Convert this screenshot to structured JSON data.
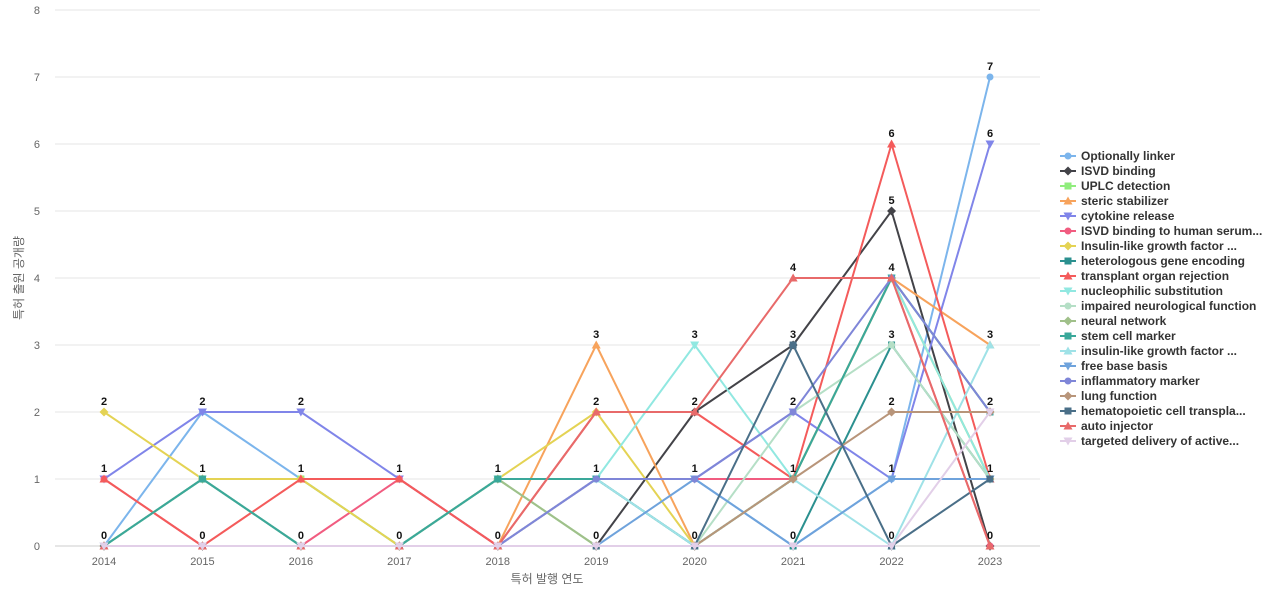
{
  "chart_data": {
    "type": "line",
    "title": "",
    "xlabel": "특허 발행 연도",
    "ylabel": "특허 출원 공개량",
    "ylim": [
      0,
      8
    ],
    "yticks": [
      0,
      1,
      2,
      3,
      4,
      5,
      6,
      7,
      8
    ],
    "categories": [
      "2014",
      "2015",
      "2016",
      "2017",
      "2018",
      "2019",
      "2020",
      "2021",
      "2022",
      "2023"
    ],
    "grid": true,
    "legend_position": "right",
    "series": [
      {
        "name": "Optionally linker",
        "color": "#7cb5ec",
        "marker": "circle",
        "values": [
          0,
          2,
          1,
          0,
          0,
          1,
          1,
          0,
          1,
          7
        ]
      },
      {
        "name": "ISVD binding",
        "color": "#434348",
        "marker": "diamond",
        "values": [
          0,
          0,
          0,
          0,
          0,
          0,
          2,
          3,
          5,
          0
        ]
      },
      {
        "name": "UPLC detection",
        "color": "#90ed7d",
        "marker": "square",
        "values": [
          0,
          1,
          1,
          0,
          1,
          0,
          0,
          1,
          4,
          1
        ]
      },
      {
        "name": "steric stabilizer",
        "color": "#f7a35c",
        "marker": "triangle",
        "values": [
          0,
          0,
          0,
          0,
          0,
          3,
          0,
          1,
          4,
          3
        ]
      },
      {
        "name": "cytokine release",
        "color": "#8085e9",
        "marker": "triangle-down",
        "values": [
          1,
          2,
          2,
          1,
          0,
          1,
          1,
          2,
          1,
          6
        ]
      },
      {
        "name": "ISVD binding to human serum...",
        "color": "#f15c80",
        "marker": "circle",
        "values": [
          1,
          0,
          0,
          1,
          0,
          1,
          1,
          1,
          4,
          0
        ]
      },
      {
        "name": "Insulin-like growth factor ...",
        "color": "#e4d354",
        "marker": "diamond",
        "values": [
          2,
          1,
          1,
          0,
          1,
          2,
          0,
          1,
          4,
          1
        ]
      },
      {
        "name": "heterologous gene encoding",
        "color": "#2b908f",
        "marker": "square",
        "values": [
          0,
          1,
          0,
          0,
          1,
          1,
          0,
          0,
          3,
          1
        ]
      },
      {
        "name": "transplant organ rejection",
        "color": "#f45b5b",
        "marker": "triangle",
        "values": [
          1,
          0,
          1,
          1,
          0,
          2,
          2,
          1,
          6,
          1
        ]
      },
      {
        "name": "nucleophilic substitution",
        "color": "#91e8e1",
        "marker": "triangle-down",
        "values": [
          0,
          1,
          0,
          0,
          1,
          1,
          3,
          1,
          4,
          1
        ]
      },
      {
        "name": "impaired neurological function",
        "color": "#b5dfc6",
        "marker": "circle",
        "values": [
          0,
          1,
          0,
          0,
          1,
          0,
          0,
          2,
          3,
          1
        ]
      },
      {
        "name": "neural network",
        "color": "#a0c08a",
        "marker": "diamond",
        "values": [
          0,
          1,
          0,
          0,
          1,
          0,
          0,
          1,
          4,
          2
        ]
      },
      {
        "name": "stem cell marker",
        "color": "#3aa89a",
        "marker": "square",
        "values": [
          0,
          1,
          0,
          0,
          1,
          1,
          0,
          1,
          4,
          2
        ]
      },
      {
        "name": "insulin-like growth factor ...",
        "color": "#9fe2e7",
        "marker": "triangle",
        "values": [
          0,
          0,
          0,
          0,
          0,
          1,
          0,
          1,
          0,
          3
        ]
      },
      {
        "name": "free base basis",
        "color": "#6fa3dc",
        "marker": "triangle-down",
        "values": [
          0,
          0,
          0,
          0,
          0,
          0,
          1,
          0,
          1,
          1
        ]
      },
      {
        "name": "inflammatory marker",
        "color": "#7f86d8",
        "marker": "circle",
        "values": [
          0,
          0,
          0,
          0,
          0,
          1,
          1,
          2,
          4,
          2
        ]
      },
      {
        "name": "lung function",
        "color": "#b8957a",
        "marker": "diamond",
        "values": [
          0,
          0,
          0,
          0,
          0,
          0,
          0,
          1,
          2,
          2
        ]
      },
      {
        "name": "hematopoietic cell transpla...",
        "color": "#4a6f88",
        "marker": "square",
        "values": [
          0,
          0,
          0,
          0,
          0,
          0,
          0,
          3,
          0,
          1
        ]
      },
      {
        "name": "auto injector",
        "color": "#e86a6a",
        "marker": "triangle",
        "values": [
          0,
          0,
          0,
          0,
          0,
          2,
          2,
          4,
          4,
          0
        ]
      },
      {
        "name": "targeted delivery of active...",
        "color": "#e2cfe8",
        "marker": "triangle-down",
        "values": [
          0,
          0,
          0,
          0,
          0,
          0,
          0,
          0,
          0,
          2
        ]
      }
    ],
    "data_labels": [
      {
        "x": "2014",
        "y": 2,
        "text": "2"
      },
      {
        "x": "2014",
        "y": 1,
        "text": "1"
      },
      {
        "x": "2014",
        "y": 0,
        "text": "0"
      },
      {
        "x": "2015",
        "y": 2,
        "text": "2"
      },
      {
        "x": "2015",
        "y": 1,
        "text": "1"
      },
      {
        "x": "2015",
        "y": 0,
        "text": "0"
      },
      {
        "x": "2016",
        "y": 2,
        "text": "2"
      },
      {
        "x": "2016",
        "y": 1,
        "text": "1"
      },
      {
        "x": "2016",
        "y": 0,
        "text": "0"
      },
      {
        "x": "2017",
        "y": 1,
        "text": "1"
      },
      {
        "x": "2017",
        "y": 0,
        "text": "0"
      },
      {
        "x": "2018",
        "y": 1,
        "text": "1"
      },
      {
        "x": "2018",
        "y": 0,
        "text": "0"
      },
      {
        "x": "2019",
        "y": 3,
        "text": "3"
      },
      {
        "x": "2019",
        "y": 2,
        "text": "2"
      },
      {
        "x": "2019",
        "y": 1,
        "text": "1"
      },
      {
        "x": "2019",
        "y": 0,
        "text": "0"
      },
      {
        "x": "2020",
        "y": 3,
        "text": "3"
      },
      {
        "x": "2020",
        "y": 2,
        "text": "2"
      },
      {
        "x": "2020",
        "y": 1,
        "text": "1"
      },
      {
        "x": "2020",
        "y": 0,
        "text": "0"
      },
      {
        "x": "2021",
        "y": 4,
        "text": "4"
      },
      {
        "x": "2021",
        "y": 3,
        "text": "3"
      },
      {
        "x": "2021",
        "y": 2,
        "text": "2"
      },
      {
        "x": "2021",
        "y": 1,
        "text": "1"
      },
      {
        "x": "2021",
        "y": 0,
        "text": "0"
      },
      {
        "x": "2022",
        "y": 6,
        "text": "6"
      },
      {
        "x": "2022",
        "y": 5,
        "text": "5"
      },
      {
        "x": "2022",
        "y": 4,
        "text": "4"
      },
      {
        "x": "2022",
        "y": 3,
        "text": "3"
      },
      {
        "x": "2022",
        "y": 2,
        "text": "2"
      },
      {
        "x": "2022",
        "y": 1,
        "text": "1"
      },
      {
        "x": "2022",
        "y": 0,
        "text": "0"
      },
      {
        "x": "2023",
        "y": 7,
        "text": "7"
      },
      {
        "x": "2023",
        "y": 6,
        "text": "6"
      },
      {
        "x": "2023",
        "y": 3,
        "text": "3"
      },
      {
        "x": "2023",
        "y": 2,
        "text": "2"
      },
      {
        "x": "2023",
        "y": 1,
        "text": "1"
      },
      {
        "x": "2023",
        "y": 0,
        "text": "0"
      }
    ]
  }
}
